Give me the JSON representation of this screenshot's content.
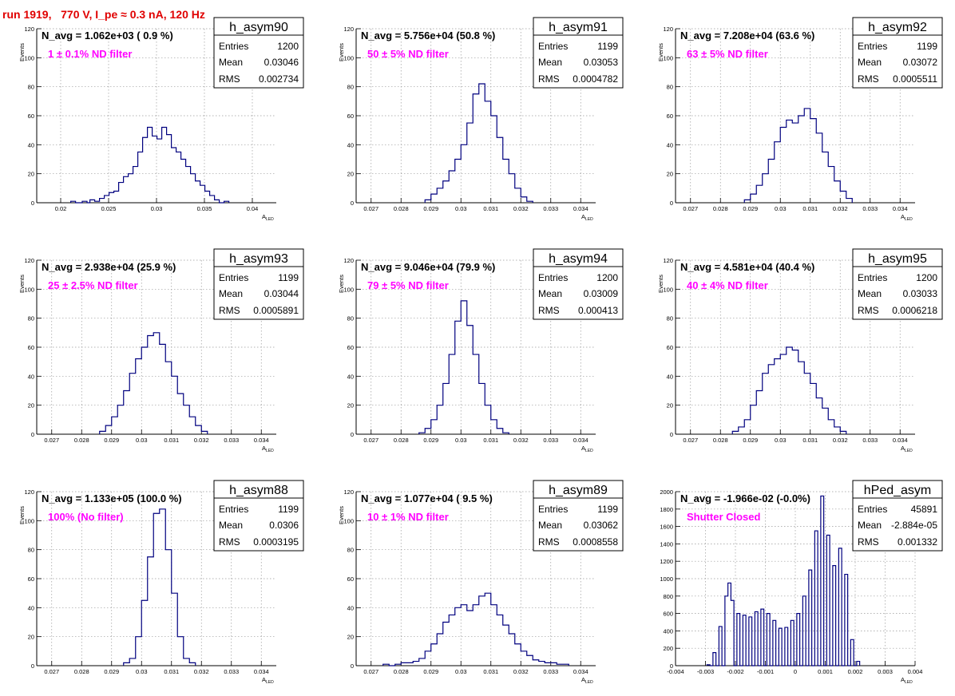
{
  "page_title": "run 1919,   770 V, I_pe ≈ 0.3 nA, 120 Hz",
  "colors": {
    "title": "#e00000",
    "histogram": "#00007f",
    "filter_label": "#ff00ff"
  },
  "chart_data": [
    {
      "type": "histogram",
      "name": "h_asym90",
      "navg": "N_avg = 1.062e+03 ( 0.9 %)",
      "filter_label": "1 ± 0.1% ND filter",
      "stats": {
        "entries": "1200",
        "mean": "0.03046",
        "rms": "0.002734"
      },
      "xlabel": "A",
      "xlabel_sub": "LED",
      "ylabel": "Events",
      "xlim": [
        0.0175,
        0.0425
      ],
      "ylim": [
        0,
        120
      ],
      "xticks": [
        0.02,
        0.025,
        0.03,
        0.035,
        0.04
      ],
      "xtick_labels": [
        "0.02",
        "0.025",
        "0.03",
        "0.035",
        "0.04"
      ],
      "yticks": [
        0,
        20,
        40,
        60,
        80,
        100,
        120
      ],
      "ytick_labels": [
        "0",
        "20",
        "40",
        "60",
        "80",
        "100",
        "120"
      ],
      "bins": [
        [
          0.0213,
          1
        ],
        [
          0.0225,
          1
        ],
        [
          0.0233,
          2
        ],
        [
          0.0238,
          1
        ],
        [
          0.0243,
          3
        ],
        [
          0.0248,
          5
        ],
        [
          0.0253,
          7
        ],
        [
          0.0258,
          8
        ],
        [
          0.0263,
          14
        ],
        [
          0.0268,
          18
        ],
        [
          0.0273,
          20
        ],
        [
          0.0278,
          25
        ],
        [
          0.0283,
          35
        ],
        [
          0.0288,
          45
        ],
        [
          0.0293,
          52
        ],
        [
          0.0298,
          46
        ],
        [
          0.0303,
          44
        ],
        [
          0.0308,
          52
        ],
        [
          0.0313,
          47
        ],
        [
          0.0318,
          38
        ],
        [
          0.0323,
          35
        ],
        [
          0.0328,
          30
        ],
        [
          0.0333,
          25
        ],
        [
          0.0338,
          20
        ],
        [
          0.0343,
          15
        ],
        [
          0.0348,
          12
        ],
        [
          0.0353,
          8
        ],
        [
          0.0358,
          5
        ],
        [
          0.0363,
          2
        ],
        [
          0.0373,
          1
        ]
      ]
    },
    {
      "type": "histogram",
      "name": "h_asym91",
      "navg": "N_avg = 5.756e+04 (50.8 %)",
      "filter_label": "50 ± 5% ND filter",
      "stats": {
        "entries": "1199",
        "mean": "0.03053",
        "rms": "0.0004782"
      },
      "xlabel": "A",
      "xlabel_sub": "LED",
      "ylabel": "Events",
      "xlim": [
        0.0265,
        0.0345
      ],
      "ylim": [
        0,
        120
      ],
      "xticks": [
        0.027,
        0.028,
        0.029,
        0.03,
        0.031,
        0.032,
        0.033,
        0.034
      ],
      "xtick_labels": [
        "0.027",
        "0.028",
        "0.029",
        "0.03",
        "0.031",
        "0.032",
        "0.033",
        "0.034"
      ],
      "yticks": [
        0,
        20,
        40,
        60,
        80,
        100,
        120
      ],
      "ytick_labels": [
        "0",
        "20",
        "40",
        "60",
        "80",
        "100",
        "120"
      ],
      "bins": [
        [
          0.0289,
          2
        ],
        [
          0.0291,
          6
        ],
        [
          0.0293,
          10
        ],
        [
          0.0295,
          15
        ],
        [
          0.0297,
          22
        ],
        [
          0.0299,
          30
        ],
        [
          0.0301,
          40
        ],
        [
          0.0303,
          55
        ],
        [
          0.0305,
          75
        ],
        [
          0.0307,
          82
        ],
        [
          0.0309,
          70
        ],
        [
          0.0311,
          60
        ],
        [
          0.0313,
          45
        ],
        [
          0.0315,
          30
        ],
        [
          0.0317,
          20
        ],
        [
          0.0319,
          10
        ],
        [
          0.0321,
          4
        ],
        [
          0.0323,
          1
        ]
      ]
    },
    {
      "type": "histogram",
      "name": "h_asym92",
      "navg": "N_avg = 7.208e+04 (63.6 %)",
      "filter_label": "63 ± 5% ND filter",
      "stats": {
        "entries": "1199",
        "mean": "0.03072",
        "rms": "0.0005511"
      },
      "xlabel": "A",
      "xlabel_sub": "LED",
      "ylabel": "Events",
      "xlim": [
        0.0265,
        0.0345
      ],
      "ylim": [
        0,
        120
      ],
      "xticks": [
        0.027,
        0.028,
        0.029,
        0.03,
        0.031,
        0.032,
        0.033,
        0.034
      ],
      "xtick_labels": [
        "0.027",
        "0.028",
        "0.029",
        "0.03",
        "0.031",
        "0.032",
        "0.033",
        "0.034"
      ],
      "yticks": [
        0,
        20,
        40,
        60,
        80,
        100,
        120
      ],
      "ytick_labels": [
        "0",
        "20",
        "40",
        "60",
        "80",
        "100",
        "120"
      ],
      "bins": [
        [
          0.0289,
          2
        ],
        [
          0.0291,
          6
        ],
        [
          0.0293,
          12
        ],
        [
          0.0295,
          20
        ],
        [
          0.0297,
          30
        ],
        [
          0.0299,
          42
        ],
        [
          0.0301,
          52
        ],
        [
          0.0303,
          57
        ],
        [
          0.0305,
          55
        ],
        [
          0.0307,
          60
        ],
        [
          0.0309,
          65
        ],
        [
          0.0311,
          58
        ],
        [
          0.0313,
          48
        ],
        [
          0.0315,
          35
        ],
        [
          0.0317,
          25
        ],
        [
          0.0319,
          15
        ],
        [
          0.0321,
          8
        ],
        [
          0.0323,
          3
        ]
      ]
    },
    {
      "type": "histogram",
      "name": "h_asym93",
      "navg": "N_avg = 2.938e+04 (25.9 %)",
      "filter_label": "25 ± 2.5% ND filter",
      "stats": {
        "entries": "1199",
        "mean": "0.03044",
        "rms": "0.0005891"
      },
      "xlabel": "A",
      "xlabel_sub": "LED",
      "ylabel": "Events",
      "xlim": [
        0.0265,
        0.0345
      ],
      "ylim": [
        0,
        120
      ],
      "xticks": [
        0.027,
        0.028,
        0.029,
        0.03,
        0.031,
        0.032,
        0.033,
        0.034
      ],
      "xtick_labels": [
        "0.027",
        "0.028",
        "0.029",
        "0.03",
        "0.031",
        "0.032",
        "0.033",
        "0.034"
      ],
      "yticks": [
        0,
        20,
        40,
        60,
        80,
        100,
        120
      ],
      "ytick_labels": [
        "0",
        "20",
        "40",
        "60",
        "80",
        "100",
        "120"
      ],
      "bins": [
        [
          0.0287,
          2
        ],
        [
          0.0289,
          6
        ],
        [
          0.0291,
          12
        ],
        [
          0.0293,
          20
        ],
        [
          0.0295,
          30
        ],
        [
          0.0297,
          42
        ],
        [
          0.0299,
          52
        ],
        [
          0.0301,
          60
        ],
        [
          0.0303,
          68
        ],
        [
          0.0305,
          70
        ],
        [
          0.0307,
          62
        ],
        [
          0.0309,
          50
        ],
        [
          0.0311,
          40
        ],
        [
          0.0313,
          28
        ],
        [
          0.0315,
          20
        ],
        [
          0.0317,
          12
        ],
        [
          0.0319,
          6
        ],
        [
          0.0321,
          2
        ]
      ]
    },
    {
      "type": "histogram",
      "name": "h_asym94",
      "navg": "N_avg = 9.046e+04 (79.9 %)",
      "filter_label": "79 ± 5% ND filter",
      "stats": {
        "entries": "1200",
        "mean": "0.03009",
        "rms": "0.000413"
      },
      "xlabel": "A",
      "xlabel_sub": "LED",
      "ylabel": "Events",
      "xlim": [
        0.0265,
        0.0345
      ],
      "ylim": [
        0,
        120
      ],
      "xticks": [
        0.027,
        0.028,
        0.029,
        0.03,
        0.031,
        0.032,
        0.033,
        0.034
      ],
      "xtick_labels": [
        "0.027",
        "0.028",
        "0.029",
        "0.03",
        "0.031",
        "0.032",
        "0.033",
        "0.034"
      ],
      "yticks": [
        0,
        20,
        40,
        60,
        80,
        100,
        120
      ],
      "ytick_labels": [
        "0",
        "20",
        "40",
        "60",
        "80",
        "100",
        "120"
      ],
      "bins": [
        [
          0.0287,
          1
        ],
        [
          0.0289,
          4
        ],
        [
          0.0291,
          10
        ],
        [
          0.0293,
          20
        ],
        [
          0.0295,
          35
        ],
        [
          0.0297,
          55
        ],
        [
          0.0299,
          78
        ],
        [
          0.0301,
          92
        ],
        [
          0.0303,
          75
        ],
        [
          0.0305,
          55
        ],
        [
          0.0307,
          35
        ],
        [
          0.0309,
          20
        ],
        [
          0.0311,
          10
        ],
        [
          0.0313,
          4
        ],
        [
          0.0315,
          1
        ]
      ]
    },
    {
      "type": "histogram",
      "name": "h_asym95",
      "navg": "N_avg = 4.581e+04 (40.4 %)",
      "filter_label": "40 ± 4% ND filter",
      "stats": {
        "entries": "1200",
        "mean": "0.03033",
        "rms": "0.0006218"
      },
      "xlabel": "A",
      "xlabel_sub": "LED",
      "ylabel": "Events",
      "xlim": [
        0.0265,
        0.0345
      ],
      "ylim": [
        0,
        120
      ],
      "xticks": [
        0.027,
        0.028,
        0.029,
        0.03,
        0.031,
        0.032,
        0.033,
        0.034
      ],
      "xtick_labels": [
        "0.027",
        "0.028",
        "0.029",
        "0.03",
        "0.031",
        "0.032",
        "0.033",
        "0.034"
      ],
      "yticks": [
        0,
        20,
        40,
        60,
        80,
        100,
        120
      ],
      "ytick_labels": [
        "0",
        "20",
        "40",
        "60",
        "80",
        "100",
        "120"
      ],
      "bins": [
        [
          0.0285,
          2
        ],
        [
          0.0287,
          5
        ],
        [
          0.0289,
          10
        ],
        [
          0.0291,
          20
        ],
        [
          0.0293,
          30
        ],
        [
          0.0295,
          42
        ],
        [
          0.0297,
          48
        ],
        [
          0.0299,
          52
        ],
        [
          0.0301,
          55
        ],
        [
          0.0303,
          60
        ],
        [
          0.0305,
          58
        ],
        [
          0.0307,
          50
        ],
        [
          0.0309,
          42
        ],
        [
          0.0311,
          35
        ],
        [
          0.0313,
          25
        ],
        [
          0.0315,
          18
        ],
        [
          0.0317,
          10
        ],
        [
          0.0319,
          5
        ],
        [
          0.0321,
          2
        ]
      ]
    },
    {
      "type": "histogram",
      "name": "h_asym88",
      "navg": "N_avg = 1.133e+05 (100.0 %)",
      "filter_label": "100% (No filter)",
      "stats": {
        "entries": "1199",
        "mean": "0.0306",
        "rms": "0.0003195"
      },
      "xlabel": "A",
      "xlabel_sub": "LED",
      "ylabel": "Events",
      "xlim": [
        0.0265,
        0.0345
      ],
      "ylim": [
        0,
        120
      ],
      "xticks": [
        0.027,
        0.028,
        0.029,
        0.03,
        0.031,
        0.032,
        0.033,
        0.034
      ],
      "xtick_labels": [
        "0.027",
        "0.028",
        "0.029",
        "0.03",
        "0.031",
        "0.032",
        "0.033",
        "0.034"
      ],
      "yticks": [
        0,
        20,
        40,
        60,
        80,
        100,
        120
      ],
      "ytick_labels": [
        "0",
        "20",
        "40",
        "60",
        "80",
        "100",
        "120"
      ],
      "bins": [
        [
          0.0295,
          2
        ],
        [
          0.0297,
          5
        ],
        [
          0.0299,
          20
        ],
        [
          0.0301,
          45
        ],
        [
          0.0303,
          75
        ],
        [
          0.0305,
          105
        ],
        [
          0.0307,
          108
        ],
        [
          0.0309,
          80
        ],
        [
          0.0311,
          50
        ],
        [
          0.0313,
          20
        ],
        [
          0.0315,
          5
        ],
        [
          0.0317,
          2
        ]
      ]
    },
    {
      "type": "histogram",
      "name": "h_asym89",
      "navg": "N_avg = 1.077e+04 ( 9.5 %)",
      "filter_label": "10 ± 1% ND filter",
      "stats": {
        "entries": "1199",
        "mean": "0.03062",
        "rms": "0.0008558"
      },
      "xlabel": "A",
      "xlabel_sub": "LED",
      "ylabel": "Events",
      "xlim": [
        0.0265,
        0.0345
      ],
      "ylim": [
        0,
        120
      ],
      "xticks": [
        0.027,
        0.028,
        0.029,
        0.03,
        0.031,
        0.032,
        0.033,
        0.034
      ],
      "xtick_labels": [
        "0.027",
        "0.028",
        "0.029",
        "0.03",
        "0.031",
        "0.032",
        "0.033",
        "0.034"
      ],
      "yticks": [
        0,
        20,
        40,
        60,
        80,
        100,
        120
      ],
      "ytick_labels": [
        "0",
        "20",
        "40",
        "60",
        "80",
        "100",
        "120"
      ],
      "bins": [
        [
          0.0275,
          1
        ],
        [
          0.0279,
          1
        ],
        [
          0.0281,
          2
        ],
        [
          0.0283,
          2
        ],
        [
          0.0285,
          3
        ],
        [
          0.0287,
          5
        ],
        [
          0.0289,
          10
        ],
        [
          0.0291,
          15
        ],
        [
          0.0293,
          22
        ],
        [
          0.0295,
          30
        ],
        [
          0.0297,
          35
        ],
        [
          0.0299,
          40
        ],
        [
          0.0301,
          42
        ],
        [
          0.0303,
          38
        ],
        [
          0.0305,
          42
        ],
        [
          0.0307,
          48
        ],
        [
          0.0309,
          50
        ],
        [
          0.0311,
          42
        ],
        [
          0.0313,
          35
        ],
        [
          0.0315,
          28
        ],
        [
          0.0317,
          22
        ],
        [
          0.0319,
          15
        ],
        [
          0.0321,
          10
        ],
        [
          0.0323,
          7
        ],
        [
          0.0325,
          4
        ],
        [
          0.0327,
          3
        ],
        [
          0.0329,
          2
        ],
        [
          0.0331,
          2
        ],
        [
          0.0333,
          1
        ],
        [
          0.0335,
          1
        ]
      ]
    },
    {
      "type": "histogram",
      "name": "hPed_asym",
      "navg": "N_avg = -1.966e-02 (-0.0%)",
      "filter_label": "Shutter Closed",
      "stats": {
        "entries": "45891",
        "mean": "-2.884e-05",
        "rms": "0.001332"
      },
      "xlabel": "A",
      "xlabel_sub": "LED",
      "ylabel": "",
      "xlim": [
        -0.004,
        0.004
      ],
      "ylim": [
        0,
        2000
      ],
      "xticks": [
        -0.004,
        -0.003,
        -0.002,
        -0.001,
        0,
        0.001,
        0.002,
        0.003,
        0.004
      ],
      "xtick_labels": [
        "-0.004",
        "-0.003",
        "-0.002",
        "-0.001",
        "0",
        "0.001",
        "0.002",
        "0.003",
        "0.004"
      ],
      "yticks": [
        0,
        200,
        400,
        600,
        800,
        1000,
        1200,
        1400,
        1600,
        1800,
        2000
      ],
      "ytick_labels": [
        "0",
        "200",
        "400",
        "600",
        "800",
        "1000",
        "1200",
        "1400",
        "1600",
        "1800",
        "2000"
      ],
      "bins": [
        [
          -0.0029,
          10
        ],
        [
          -0.0027,
          150
        ],
        [
          -0.0025,
          450
        ],
        [
          -0.0023,
          800
        ],
        [
          -0.0022,
          950
        ],
        [
          -0.0021,
          750
        ],
        [
          -0.0019,
          600
        ],
        [
          -0.0017,
          580
        ],
        [
          -0.0015,
          560
        ],
        [
          -0.0013,
          620
        ],
        [
          -0.0011,
          650
        ],
        [
          -0.0009,
          600
        ],
        [
          -0.0007,
          520
        ],
        [
          -0.0005,
          430
        ],
        [
          -0.0003,
          440
        ],
        [
          -0.0001,
          520
        ],
        [
          0.0001,
          600
        ],
        [
          0.0003,
          800
        ],
        [
          0.0005,
          1100
        ],
        [
          0.0007,
          1550
        ],
        [
          0.0009,
          1950
        ],
        [
          0.0011,
          1500
        ],
        [
          0.0013,
          1150
        ],
        [
          0.0015,
          1350
        ],
        [
          0.0017,
          1050
        ],
        [
          0.0019,
          300
        ],
        [
          0.0021,
          50
        ]
      ]
    }
  ]
}
